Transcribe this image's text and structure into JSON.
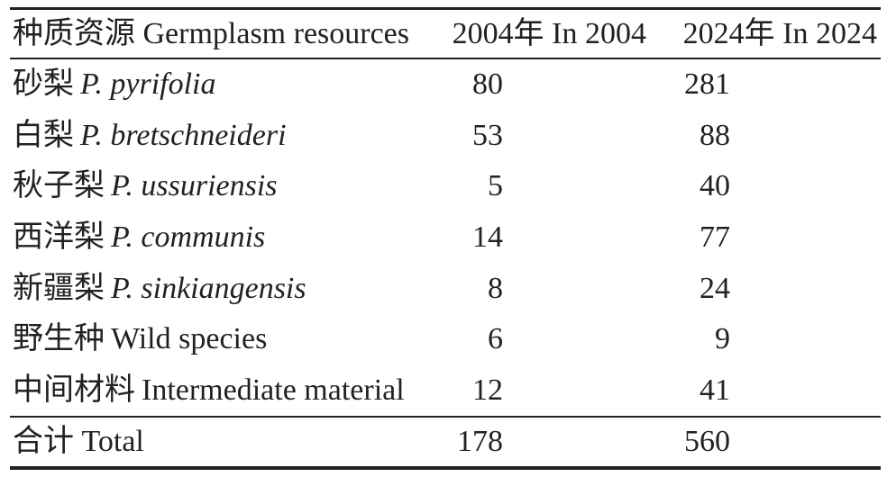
{
  "colors": {
    "text": "#241f20",
    "rule": "#241f20",
    "background": "#ffffff"
  },
  "table": {
    "header": {
      "resources": "种质资源 Germplasm resources",
      "year2004": "2004年 In 2004",
      "year2024": "2024年 In 2024"
    },
    "rows": [
      {
        "zh": "砂梨",
        "en": "P. pyrifolia",
        "v2004": "80",
        "v2024": "281"
      },
      {
        "zh": "白梨",
        "en": "P. bretschneideri",
        "v2004": "53",
        "v2024": "88"
      },
      {
        "zh": "秋子梨",
        "en": "P. ussuriensis",
        "v2004": "5",
        "v2024": "40"
      },
      {
        "zh": "西洋梨",
        "en": "P. communis",
        "v2004": "14",
        "v2024": "77"
      },
      {
        "zh": "新疆梨",
        "en": "P. sinkiangensis",
        "v2004": "8",
        "v2024": "24"
      },
      {
        "zh": "野生种",
        "en": "Wild species",
        "v2004": "6",
        "v2024": "9"
      },
      {
        "zh": "中间材料",
        "en": "Intermediate material",
        "v2004": "12",
        "v2024": "41"
      }
    ],
    "total": {
      "label": "合计 Total",
      "v2004": "178",
      "v2024": "560"
    }
  }
}
